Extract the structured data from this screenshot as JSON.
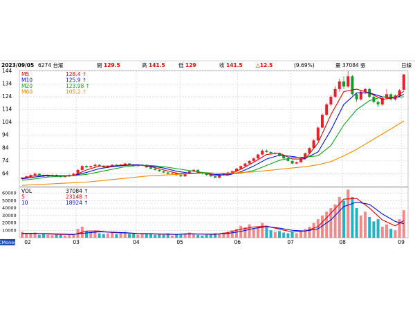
{
  "chart_data": {
    "type": "candlestick",
    "info": {
      "date": "2023/09/05",
      "stock": "6274 台燿",
      "fields": [
        {
          "label": "開",
          "value": "129.5"
        },
        {
          "label": "高",
          "value": "141.5"
        },
        {
          "label": "低",
          "value": "129"
        },
        {
          "label": "收",
          "value": "141.5"
        }
      ],
      "change": "△12.5",
      "change_pct": "(9.69%)",
      "volume": "量 37084 張",
      "period": "日線"
    },
    "brand": "CMoney",
    "up_color": "#e8202a",
    "down_color": "#169a2a",
    "vol_up_color": "#f08a8a",
    "vol_down_color": "#22b3c3",
    "ylim": [
      54,
      144.5
    ],
    "yticks": [
      64,
      74,
      84,
      94,
      104,
      114,
      124,
      134,
      144
    ],
    "vol_ylim": [
      0,
      68000
    ],
    "vol_yticks": [
      10000,
      20000,
      30000,
      40000,
      50000,
      60000
    ],
    "xticks": [
      {
        "value": 1.3,
        "label": "02"
      },
      {
        "value": 12.6,
        "label": "03"
      },
      {
        "value": 26.6,
        "label": "04"
      },
      {
        "value": 36.8,
        "label": "05"
      },
      {
        "value": 50.2,
        "label": "06"
      },
      {
        "value": 62.6,
        "label": "07"
      },
      {
        "value": 74.7,
        "label": "08"
      },
      {
        "value": 88.4,
        "label": "09"
      }
    ],
    "grid": true,
    "candles": [
      [
        60,
        61.5,
        59.5,
        61
      ],
      [
        61,
        62.5,
        60.5,
        62
      ],
      [
        62,
        63.5,
        61.5,
        63
      ],
      [
        63,
        65,
        62.5,
        64
      ],
      [
        64,
        64.5,
        62.5,
        63
      ],
      [
        63,
        63.5,
        61.5,
        62
      ],
      [
        62,
        63,
        61.5,
        62.5
      ],
      [
        62.5,
        63.5,
        62,
        63
      ],
      [
        63,
        63.5,
        61.5,
        62
      ],
      [
        62,
        62.5,
        61,
        61.5
      ],
      [
        61.5,
        62.5,
        61,
        62
      ],
      [
        62,
        63.5,
        61.5,
        63
      ],
      [
        63,
        64.5,
        62.5,
        64
      ],
      [
        64,
        67.5,
        63.5,
        67
      ],
      [
        67,
        71,
        66.5,
        70
      ],
      [
        70,
        71,
        68.5,
        69
      ],
      [
        69,
        70.5,
        68.5,
        70
      ],
      [
        70,
        72,
        69.5,
        71
      ],
      [
        71,
        71.5,
        69.5,
        70
      ],
      [
        70,
        70.5,
        68.5,
        69
      ],
      [
        69,
        70.5,
        68.5,
        70
      ],
      [
        70,
        71.5,
        69.5,
        71
      ],
      [
        71,
        71.5,
        70,
        70.5
      ],
      [
        70.5,
        71.5,
        70,
        71
      ],
      [
        71,
        72.5,
        70.5,
        72
      ],
      [
        72,
        72.5,
        70.5,
        71
      ],
      [
        71,
        71.5,
        69.5,
        70
      ],
      [
        70,
        71,
        69.5,
        70.5
      ],
      [
        70.5,
        71.5,
        70,
        71
      ],
      [
        71,
        71.5,
        68.5,
        69
      ],
      [
        69,
        69.5,
        67.5,
        68
      ],
      [
        68,
        68.5,
        66.5,
        67
      ],
      [
        67,
        67.5,
        65.5,
        66
      ],
      [
        66,
        66.5,
        64.5,
        65
      ],
      [
        65,
        65.5,
        63.5,
        64
      ],
      [
        64,
        65,
        63.5,
        64.5
      ],
      [
        64.5,
        65,
        62.5,
        63
      ],
      [
        63,
        63.5,
        61.5,
        62
      ],
      [
        62,
        64.5,
        61.5,
        64
      ],
      [
        64,
        66.5,
        63.5,
        66
      ],
      [
        66,
        67.5,
        65.5,
        67
      ],
      [
        67,
        67.5,
        64.5,
        65
      ],
      [
        65,
        65.5,
        63.5,
        64
      ],
      [
        64,
        64.5,
        62.5,
        63
      ],
      [
        63,
        63.5,
        61.5,
        62
      ],
      [
        62,
        62.5,
        60.5,
        61
      ],
      [
        61,
        63.5,
        60.5,
        63
      ],
      [
        63,
        64.5,
        62.5,
        64
      ],
      [
        64,
        65.5,
        63.5,
        65
      ],
      [
        65,
        66.5,
        64.5,
        66
      ],
      [
        66,
        68.5,
        65.5,
        68
      ],
      [
        68,
        70.5,
        67.5,
        70
      ],
      [
        70,
        72.5,
        69.5,
        72
      ],
      [
        72,
        74.5,
        71.5,
        74
      ],
      [
        74,
        76.5,
        73.5,
        76
      ],
      [
        76,
        79.5,
        75.5,
        79
      ],
      [
        79,
        83,
        78.5,
        82
      ],
      [
        82,
        83,
        80.5,
        81
      ],
      [
        81,
        81.5,
        79.5,
        80
      ],
      [
        80,
        81,
        79,
        80
      ],
      [
        80,
        80.5,
        77.5,
        78
      ],
      [
        78,
        78.5,
        75.5,
        76
      ],
      [
        76,
        76.5,
        73.5,
        74
      ],
      [
        74,
        74.5,
        71.5,
        72
      ],
      [
        72,
        73.5,
        71.5,
        73
      ],
      [
        73,
        76.5,
        72.5,
        76
      ],
      [
        76,
        80.5,
        75.5,
        80
      ],
      [
        80,
        84.5,
        79.5,
        84
      ],
      [
        84,
        91,
        83.5,
        90
      ],
      [
        90,
        101,
        89.5,
        100
      ],
      [
        100,
        111,
        99.5,
        110
      ],
      [
        110,
        119,
        109,
        118
      ],
      [
        118,
        125,
        117,
        124
      ],
      [
        124,
        132,
        123,
        130
      ],
      [
        130,
        138,
        128,
        136
      ],
      [
        136,
        140,
        130,
        132
      ],
      [
        132,
        144,
        131,
        140
      ],
      [
        140,
        141,
        125,
        126
      ],
      [
        126,
        127,
        120,
        122
      ],
      [
        122,
        129,
        121,
        128
      ],
      [
        128,
        131,
        126,
        130
      ],
      [
        130,
        131,
        123,
        124
      ],
      [
        124,
        125,
        119,
        120
      ],
      [
        120,
        121,
        116,
        118
      ],
      [
        118,
        124,
        117,
        123
      ],
      [
        123,
        130,
        122,
        126
      ],
      [
        126,
        127,
        121,
        122
      ],
      [
        122,
        126,
        121,
        125
      ],
      [
        125,
        130,
        124,
        129
      ],
      [
        129.5,
        141.5,
        129,
        141.5
      ]
    ],
    "volumes": [
      8000,
      5000,
      6000,
      7000,
      4000,
      5000,
      4000,
      3500,
      5000,
      4000,
      3000,
      4000,
      5000,
      12000,
      15000,
      9000,
      8000,
      10000,
      6000,
      5000,
      6000,
      7000,
      5000,
      6000,
      8000,
      5000,
      6000,
      4000,
      5000,
      6000,
      5000,
      4000,
      5000,
      4000,
      6000,
      3000,
      5000,
      4000,
      6000,
      7000,
      5000,
      4000,
      3000,
      4000,
      5000,
      6000,
      5000,
      7000,
      8000,
      10000,
      12000,
      16000,
      14000,
      18000,
      12000,
      15000,
      20000,
      14000,
      10000,
      8000,
      9000,
      7000,
      6000,
      8000,
      6000,
      9000,
      12000,
      15000,
      20000,
      25000,
      30000,
      35000,
      40000,
      45000,
      55000,
      50000,
      65000,
      55000,
      40000,
      30000,
      35000,
      28000,
      22000,
      25000,
      15000,
      18000,
      12000,
      10000,
      25000,
      37084
    ],
    "ma_x": [
      0,
      3,
      6,
      9,
      12,
      15,
      18,
      21,
      24,
      27,
      30,
      33,
      36,
      39,
      42,
      45,
      48,
      51,
      54,
      57,
      60,
      63,
      66,
      69,
      72,
      75,
      78,
      81,
      84,
      87,
      89
    ],
    "series": [
      {
        "name": "M5",
        "color": "#e00000",
        "legend_value": "128.4 ↑",
        "values": [
          60.5,
          62.5,
          63,
          62,
          62.5,
          67,
          70,
          70,
          71,
          71,
          69.5,
          67,
          64.5,
          64,
          65,
          62.5,
          63.5,
          67.5,
          73,
          79,
          80,
          75.5,
          75.5,
          88,
          110,
          128,
          130,
          127,
          122,
          123.5,
          128.4
        ]
      },
      {
        "name": "M10",
        "color": "#0010d0",
        "legend_value": "125.9 ↑",
        "values": [
          60,
          61.5,
          62.5,
          62.5,
          62.5,
          65,
          68,
          69.5,
          70.5,
          71,
          70,
          68.5,
          66,
          64.5,
          64.5,
          63.5,
          63,
          65.5,
          70,
          75.5,
          78.5,
          77.5,
          76,
          81,
          98,
          118,
          127,
          127,
          124,
          123,
          125.9
        ]
      },
      {
        "name": "M20",
        "color": "#10a020",
        "legend_value": "123.98 ↑",
        "values": [
          59,
          60,
          61.5,
          62,
          62.5,
          63.5,
          65.5,
          67.5,
          69.5,
          70.5,
          70.5,
          69.5,
          68,
          66.5,
          65,
          64.5,
          64,
          64.5,
          66.5,
          70.5,
          74.5,
          76.5,
          77,
          78,
          86,
          102,
          114,
          121,
          124,
          123.5,
          123.98
        ]
      },
      {
        "name": "M60",
        "color": "#f08a00",
        "legend_value": "105.2 ↑",
        "values": [
          55,
          55.5,
          56,
          56.5,
          57,
          57.5,
          58.5,
          59.5,
          60.5,
          61.5,
          62.5,
          63,
          63.5,
          64,
          64.5,
          64.5,
          64.5,
          65,
          65.5,
          66.5,
          67.5,
          68.5,
          69.5,
          71,
          73.5,
          78,
          83,
          89,
          95,
          101,
          105.2
        ]
      }
    ],
    "vol_legend": {
      "name": "VOL",
      "value": "37084 ↑"
    },
    "vol_series": [
      {
        "name": "5",
        "color": "#e00000",
        "legend_value": "23148 ↑",
        "values": [
          6000,
          6000,
          5000,
          4500,
          4200,
          9000,
          9000,
          7000,
          6500,
          5500,
          5200,
          4700,
          4500,
          5500,
          4800,
          4500,
          7000,
          11500,
          14500,
          15800,
          11500,
          7800,
          9000,
          15000,
          33000,
          52000,
          53000,
          40000,
          24000,
          16000,
          23148
        ]
      },
      {
        "name": "10",
        "color": "#0010d0",
        "legend_value": "18924 ↑",
        "values": [
          5500,
          5800,
          5500,
          5000,
          4500,
          6500,
          8000,
          7500,
          6800,
          5800,
          5400,
          5000,
          4600,
          5000,
          5000,
          4800,
          5800,
          8500,
          12500,
          15000,
          13000,
          10000,
          9000,
          12000,
          24000,
          42000,
          48000,
          45000,
          32000,
          22000,
          18924
        ]
      }
    ]
  }
}
